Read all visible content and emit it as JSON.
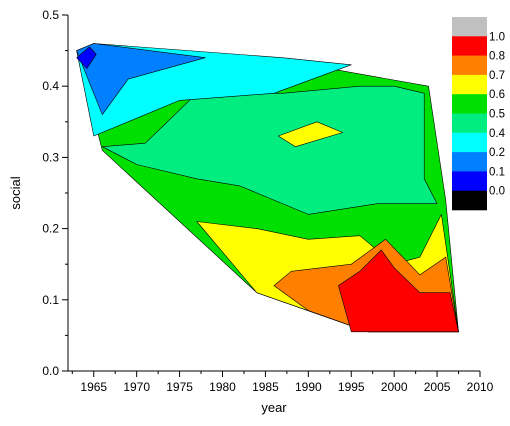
{
  "chart_data": {
    "type": "heatmap",
    "subtype": "filled-contour",
    "title": "",
    "xlabel": "year",
    "ylabel": "social",
    "xlim": [
      1962,
      2010
    ],
    "ylim": [
      0.0,
      0.5
    ],
    "x_ticks": [
      "1965",
      "1970",
      "1975",
      "1980",
      "1985",
      "1990",
      "1995",
      "2000",
      "2005",
      "2010"
    ],
    "y_ticks": [
      "0.0",
      "0.1",
      "0.2",
      "0.3",
      "0.4",
      "0.5"
    ],
    "grid": false,
    "legend_position": "right",
    "legend": {
      "labels": [
        "1.0",
        "0.8",
        "0.7",
        "0.6",
        "0.5",
        "0.4",
        "0.2",
        "0.1",
        "0.0"
      ],
      "colors": [
        "#c0c0c0",
        "#ff0000",
        "#ff8000",
        "#ffff00",
        "#00e000",
        "#00ee80",
        "#00ffff",
        "#0080ff",
        "#0000ff",
        "#000000"
      ]
    },
    "regions": [
      {
        "level": "0.6-0.7",
        "color": "#00e000",
        "polygon": [
          [
            1963,
            0.45
          ],
          [
            1965,
            0.46
          ],
          [
            1990,
            0.43
          ],
          [
            2004,
            0.4
          ],
          [
            2006,
            0.24
          ],
          [
            2007.5,
            0.055
          ],
          [
            1997,
            0.055
          ],
          [
            1984,
            0.11
          ],
          [
            1966,
            0.31
          ],
          [
            1963,
            0.45
          ]
        ]
      },
      {
        "level": "0.5-0.6",
        "color": "#00ee80",
        "polygon": [
          [
            1966,
            0.315
          ],
          [
            1971,
            0.32
          ],
          [
            1977,
            0.39
          ],
          [
            1987,
            0.39
          ],
          [
            1996,
            0.4
          ],
          [
            2000,
            0.4
          ],
          [
            2003.5,
            0.39
          ],
          [
            2003.5,
            0.27
          ],
          [
            2005,
            0.235
          ],
          [
            1998,
            0.235
          ],
          [
            1990,
            0.22
          ],
          [
            1982,
            0.26
          ],
          [
            1977,
            0.27
          ],
          [
            1970,
            0.29
          ],
          [
            1966,
            0.315
          ]
        ]
      },
      {
        "level": "0.4-0.5",
        "color": "#00ffff",
        "polygon": [
          [
            1963,
            0.45
          ],
          [
            1965,
            0.46
          ],
          [
            1987,
            0.44
          ],
          [
            1995,
            0.43
          ],
          [
            1986,
            0.39
          ],
          [
            1975,
            0.38
          ],
          [
            1969,
            0.35
          ],
          [
            1965,
            0.33
          ],
          [
            1963,
            0.45
          ]
        ]
      },
      {
        "level": "0.2-0.4",
        "color": "#0080ff",
        "polygon": [
          [
            1963,
            0.45
          ],
          [
            1965,
            0.46
          ],
          [
            1978,
            0.44
          ],
          [
            1969,
            0.41
          ],
          [
            1966,
            0.36
          ],
          [
            1963,
            0.45
          ]
        ]
      },
      {
        "level": "0.1-0.2",
        "color": "#0000ff",
        "polygon": [
          [
            1963,
            0.44
          ],
          [
            1964.5,
            0.455
          ],
          [
            1965.3,
            0.445
          ],
          [
            1964.2,
            0.425
          ],
          [
            1963,
            0.44
          ]
        ]
      },
      {
        "level": "0.7-0.8",
        "color": "#ffff00",
        "polygon": [
          [
            1977,
            0.21
          ],
          [
            1984,
            0.2
          ],
          [
            1990,
            0.185
          ],
          [
            1996,
            0.19
          ],
          [
            2000,
            0.15
          ],
          [
            2003,
            0.16
          ],
          [
            2005.5,
            0.22
          ],
          [
            2007.5,
            0.055
          ],
          [
            1997,
            0.055
          ],
          [
            1984,
            0.11
          ],
          [
            1977,
            0.21
          ]
        ]
      },
      {
        "level": "0.7-0.8",
        "color": "#ffff00",
        "polygon": [
          [
            1986.5,
            0.33
          ],
          [
            1991,
            0.35
          ],
          [
            1994,
            0.335
          ],
          [
            1988.5,
            0.315
          ],
          [
            1986.5,
            0.33
          ]
        ]
      },
      {
        "level": "0.8-0.9",
        "color": "#ff8000",
        "polygon": [
          [
            1988,
            0.14
          ],
          [
            1995,
            0.15
          ],
          [
            1999,
            0.185
          ],
          [
            2003,
            0.135
          ],
          [
            2006,
            0.16
          ],
          [
            2007.5,
            0.055
          ],
          [
            1997,
            0.055
          ],
          [
            1990,
            0.085
          ],
          [
            1986,
            0.12
          ],
          [
            1988,
            0.14
          ]
        ]
      },
      {
        "level": "0.9-1.0",
        "color": "#ff0000",
        "polygon": [
          [
            1995,
            0.055
          ],
          [
            1997,
            0.055
          ],
          [
            2007.5,
            0.055
          ],
          [
            2006.5,
            0.11
          ],
          [
            2003,
            0.11
          ],
          [
            2000,
            0.145
          ],
          [
            1998.5,
            0.17
          ],
          [
            1996,
            0.14
          ],
          [
            1993.5,
            0.12
          ],
          [
            1995,
            0.055
          ]
        ]
      }
    ]
  }
}
